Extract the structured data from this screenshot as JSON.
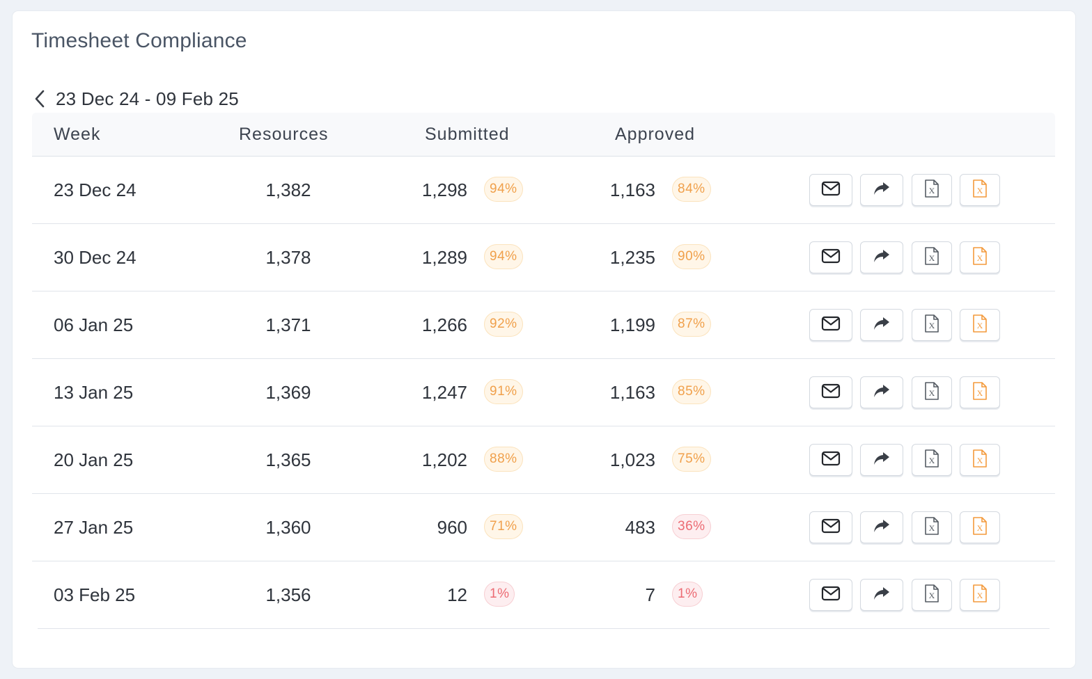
{
  "card": {
    "title": "Timesheet Compliance"
  },
  "range": {
    "label": "23 Dec 24 - 09 Feb 25",
    "back_icon": "chevron-left-icon"
  },
  "table": {
    "headers": {
      "week": "Week",
      "resources": "Resources",
      "submitted": "Submitted",
      "approved": "Approved"
    },
    "rows": [
      {
        "week": "23 Dec 24",
        "resources": "1,382",
        "submitted": "1,298",
        "submitted_pct": "94%",
        "submitted_status": "warning",
        "approved": "1,163",
        "approved_pct": "84%",
        "approved_status": "warning"
      },
      {
        "week": "30 Dec 24",
        "resources": "1,378",
        "submitted": "1,289",
        "submitted_pct": "94%",
        "submitted_status": "warning",
        "approved": "1,235",
        "approved_pct": "90%",
        "approved_status": "warning"
      },
      {
        "week": "06 Jan 25",
        "resources": "1,371",
        "submitted": "1,266",
        "submitted_pct": "92%",
        "submitted_status": "warning",
        "approved": "1,199",
        "approved_pct": "87%",
        "approved_status": "warning"
      },
      {
        "week": "13 Jan 25",
        "resources": "1,369",
        "submitted": "1,247",
        "submitted_pct": "91%",
        "submitted_status": "warning",
        "approved": "1,163",
        "approved_pct": "85%",
        "approved_status": "warning"
      },
      {
        "week": "20 Jan 25",
        "resources": "1,365",
        "submitted": "1,202",
        "submitted_pct": "88%",
        "submitted_status": "warning",
        "approved": "1,023",
        "approved_pct": "75%",
        "approved_status": "warning"
      },
      {
        "week": "27 Jan 25",
        "resources": "1,360",
        "submitted": "960",
        "submitted_pct": "71%",
        "submitted_status": "warning",
        "approved": "483",
        "approved_pct": "36%",
        "approved_status": "danger"
      },
      {
        "week": "03 Feb 25",
        "resources": "1,356",
        "submitted": "12",
        "submitted_pct": "1%",
        "submitted_status": "danger",
        "approved": "7",
        "approved_pct": "1%",
        "approved_status": "danger"
      }
    ],
    "row_actions": [
      "mail-icon",
      "share-icon",
      "excel-icon",
      "excel-orange-icon"
    ]
  },
  "colors": {
    "warning_text": "#f0a04b",
    "warning_bg": "#fff6e8",
    "danger_text": "#ec6b73",
    "danger_bg": "#fdeef0",
    "page_bg": "#eef2f7",
    "excel_orange": "#f39a3c"
  }
}
